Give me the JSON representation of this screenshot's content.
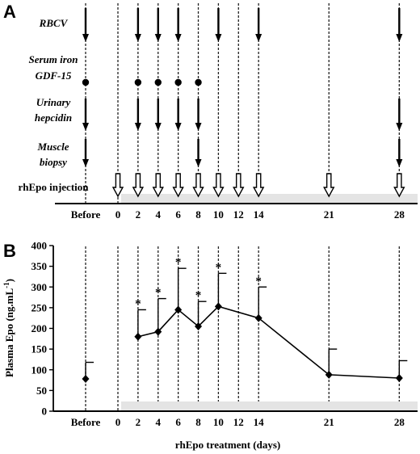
{
  "panel_a": {
    "letter": "A",
    "rows": [
      {
        "key": "rbcv",
        "label_lines": [
          "RBCV"
        ],
        "marker": "arrow",
        "at": [
          "Before",
          "2",
          "4",
          "6",
          "10",
          "14",
          "28"
        ]
      },
      {
        "key": "serum",
        "label_lines": [
          "Serum iron",
          "GDF-15"
        ],
        "marker": "dot",
        "at": [
          "Before",
          "2",
          "4",
          "6",
          "8"
        ]
      },
      {
        "key": "urinary",
        "label_lines": [
          "Urinary",
          "hepcidin"
        ],
        "marker": "arrow",
        "at": [
          "Before",
          "2",
          "4",
          "6",
          "8",
          "28"
        ]
      },
      {
        "key": "muscle",
        "label_lines": [
          "Muscle",
          "biopsy"
        ],
        "marker": "arrow",
        "at": [
          "Before",
          "8",
          "28"
        ]
      }
    ],
    "injection_label": "rhEpo injection",
    "injection_at": [
      "0",
      "2",
      "4",
      "6",
      "8",
      "10",
      "12",
      "14",
      "21",
      "28"
    ]
  },
  "timeline": {
    "before_label": "Before",
    "days": [
      0,
      2,
      4,
      6,
      8,
      10,
      12,
      14,
      21,
      28
    ]
  },
  "panel_b": {
    "letter": "B",
    "ylabel": "Plasma Epo (ng.mL",
    "ylabel_sup": "-1",
    "ylabel_close": ")",
    "xlabel": "rhEpo treatment (days)",
    "y_ticks": [
      "0",
      "50",
      "100",
      "150",
      "200",
      "250",
      "300",
      "350",
      "400"
    ],
    "sig_marker": "*"
  },
  "chart_data": {
    "type": "line",
    "xlabel": "rhEpo treatment (days)",
    "ylabel": "Plasma Epo (ng.mL-1)",
    "ylim": [
      0,
      400
    ],
    "categories": [
      "Before",
      "2",
      "4",
      "6",
      "8",
      "10",
      "14",
      "21",
      "28"
    ],
    "values": [
      78,
      180,
      192,
      245,
      205,
      253,
      225,
      88,
      80
    ],
    "errors": [
      40,
      65,
      80,
      100,
      60,
      80,
      75,
      62,
      42
    ],
    "significant": [
      false,
      true,
      true,
      true,
      true,
      true,
      true,
      false,
      false
    ],
    "connected_from_index": 1,
    "grid": false
  }
}
